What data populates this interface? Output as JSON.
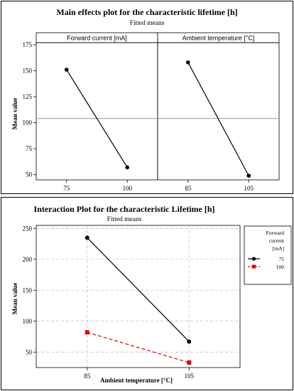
{
  "chart_data": [
    {
      "type": "line",
      "title": "Main effects plot for the characteristic lifetime [h]",
      "subtitle": "Fitted means",
      "ylabel": "Mean value",
      "ylim": [
        45,
        177
      ],
      "yticks": [
        50,
        75,
        100,
        125,
        150,
        175
      ],
      "reference_line": 104,
      "grid": false,
      "panels": [
        {
          "label": "Forward current [mA]",
          "categories": [
            "75",
            "100"
          ],
          "values": [
            151,
            57
          ]
        },
        {
          "label": "Ambient temperature [°C]",
          "categories": [
            "85",
            "105"
          ],
          "values": [
            158,
            49
          ]
        }
      ]
    },
    {
      "type": "line",
      "title": "Interaction Plot for the characteristic Lifetime [h]",
      "subtitle": "Fitted means",
      "xlabel": "Ambient temperature [°C]",
      "ylabel": "Mean value",
      "categories": [
        "85",
        "105"
      ],
      "ylim": [
        25,
        255
      ],
      "yticks": [
        50,
        100,
        150,
        200,
        250
      ],
      "grid": true,
      "legend": {
        "title": [
          "Forward",
          "current",
          "[mA]"
        ],
        "placement": "right"
      },
      "series": [
        {
          "name": "75",
          "values": [
            235,
            67
          ],
          "color": "#000000",
          "dash": "solid",
          "marker": "circle"
        },
        {
          "name": "100",
          "values": [
            82,
            33
          ],
          "color": "#e00000",
          "dash": "dashed",
          "marker": "square"
        }
      ]
    }
  ]
}
